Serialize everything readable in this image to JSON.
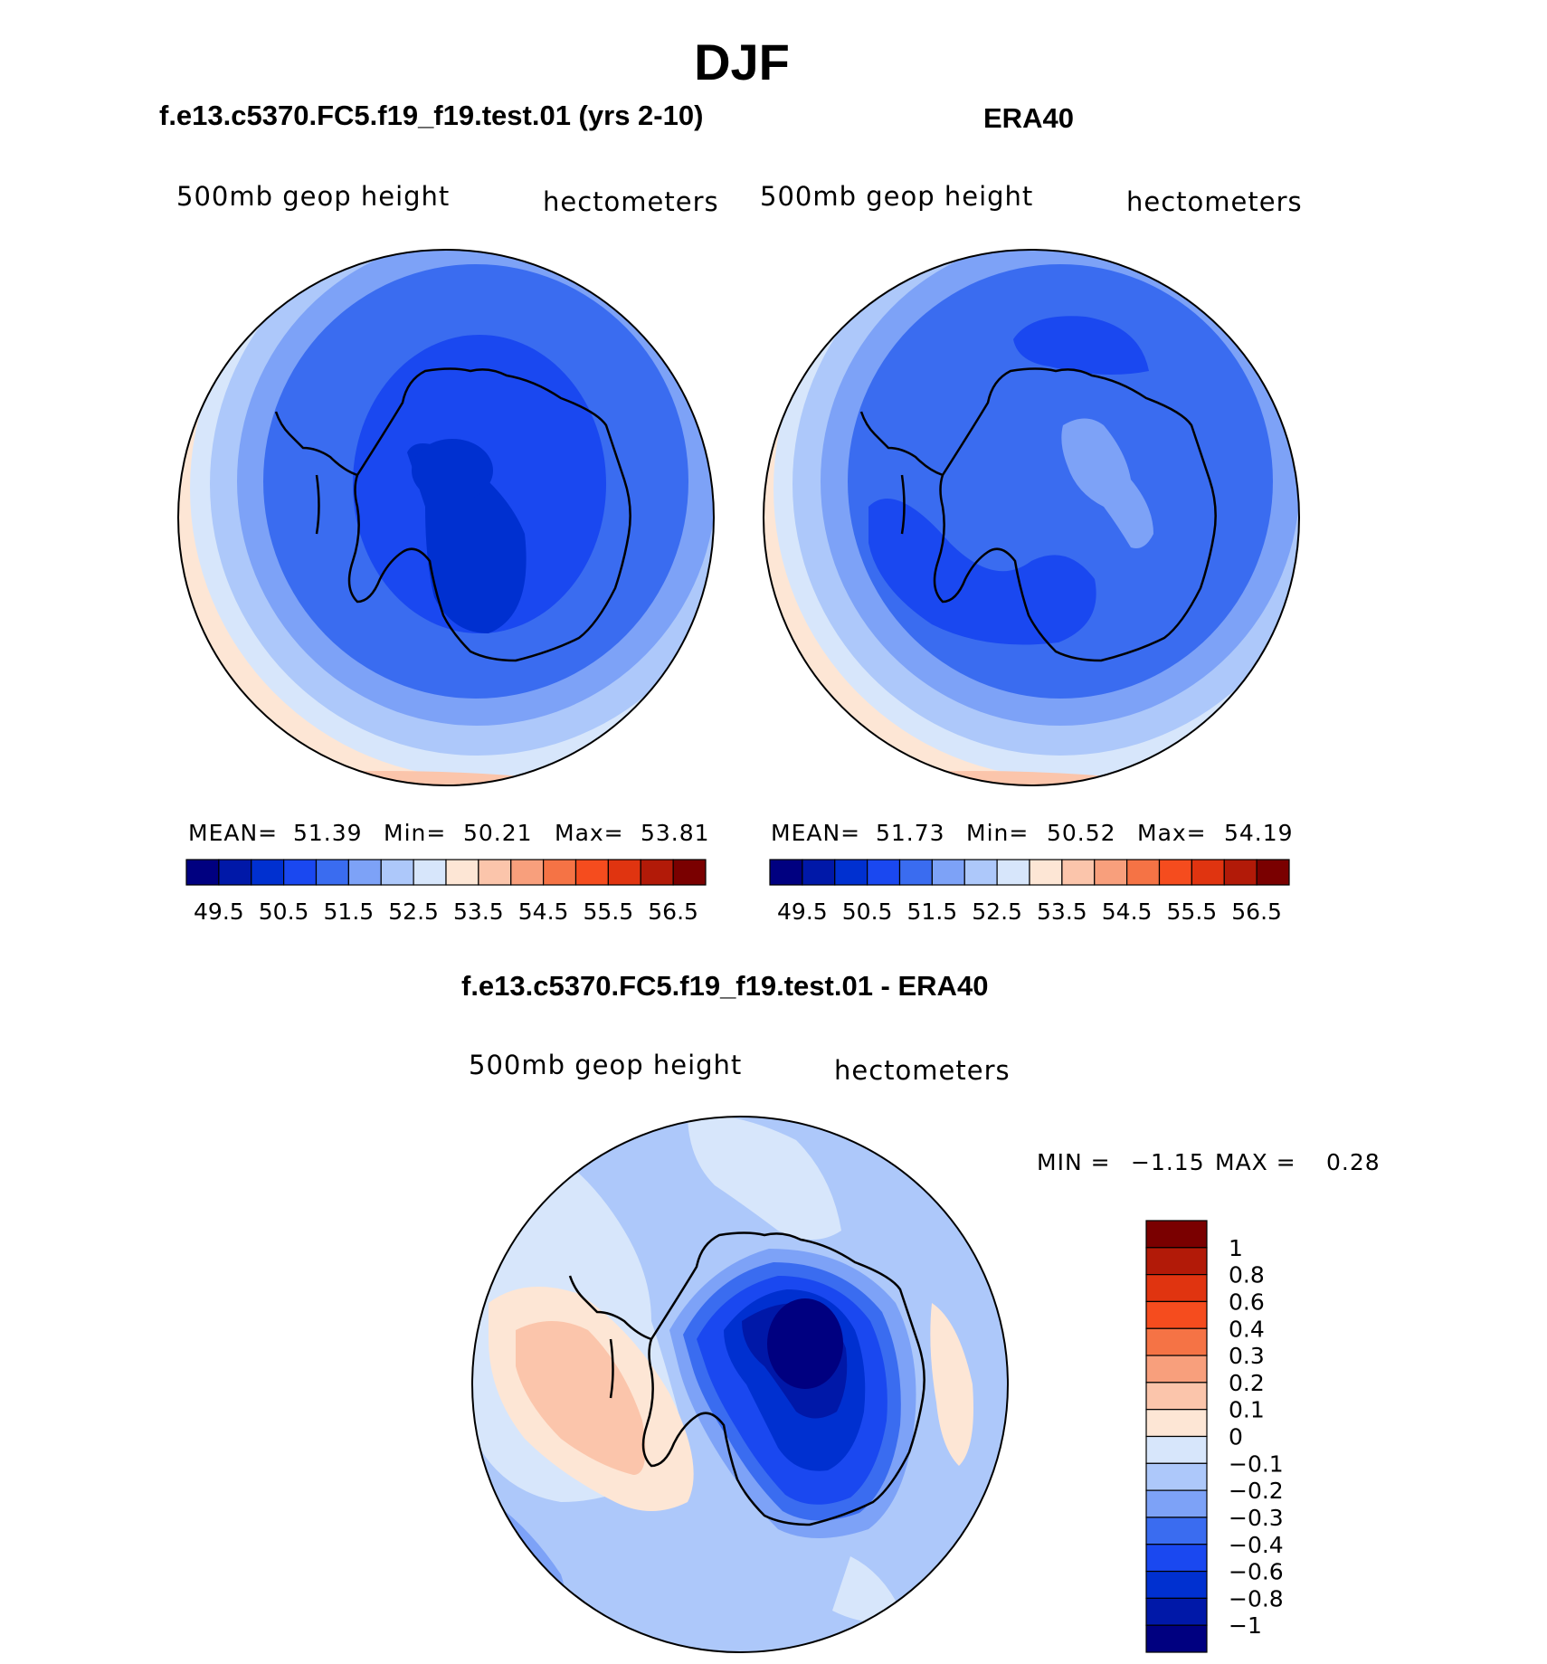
{
  "title": "DJF",
  "panels": [
    {
      "subtitle": "f.e13.c5370.FC5.f19_f19.test.01 (yrs 2-10)",
      "left_label": "500mb geop height",
      "right_label": "hectometers",
      "stats": {
        "mean_label": "MEAN=",
        "mean": "51.39",
        "min_label": "Min=",
        "min": "50.21",
        "max_label": "Max=",
        "max": "53.81"
      }
    },
    {
      "subtitle": "ERA40",
      "left_label": "500mb geop height",
      "right_label": "hectometers",
      "stats": {
        "mean_label": "MEAN=",
        "mean": "51.73",
        "min_label": "Min=",
        "min": "50.52",
        "max_label": "Max=",
        "max": "54.19"
      }
    },
    {
      "subtitle": "f.e13.c5370.FC5.f19_f19.test.01 - ERA40",
      "left_label": "500mb geop height",
      "right_label": "hectometers",
      "stats": {
        "min_label": "MIN =",
        "min": "−1.15",
        "max_label": "MAX =",
        "max": "0.28"
      }
    }
  ],
  "colorbar_horizontal": {
    "colors": [
      "#000080",
      "#0018a8",
      "#0030d0",
      "#1a48f0",
      "#3a6cf0",
      "#7da2f7",
      "#adc8fa",
      "#d7e6fb",
      "#fde6d5",
      "#fbc5ab",
      "#f89f7c",
      "#f57345",
      "#f54c1e",
      "#e03410",
      "#b21a08",
      "#7a0000"
    ],
    "tick_labels": [
      "49.5",
      "50.5",
      "51.5",
      "52.5",
      "53.5",
      "54.5",
      "55.5",
      "56.5"
    ]
  },
  "colorbar_vertical": {
    "colors": [
      "#7a0000",
      "#b21a08",
      "#e03410",
      "#f54c1e",
      "#f57345",
      "#f89f7c",
      "#fbc5ab",
      "#fde6d5",
      "#d7e6fb",
      "#adc8fa",
      "#7da2f7",
      "#3a6cf0",
      "#1a48f0",
      "#0030d0",
      "#0018a8",
      "#000080"
    ],
    "tick_labels": [
      "1",
      "0.8",
      "0.6",
      "0.4",
      "0.3",
      "0.2",
      "0.1",
      "0",
      "−0.1",
      "−0.2",
      "−0.3",
      "−0.4",
      "−0.6",
      "−0.8",
      "−1"
    ]
  }
}
